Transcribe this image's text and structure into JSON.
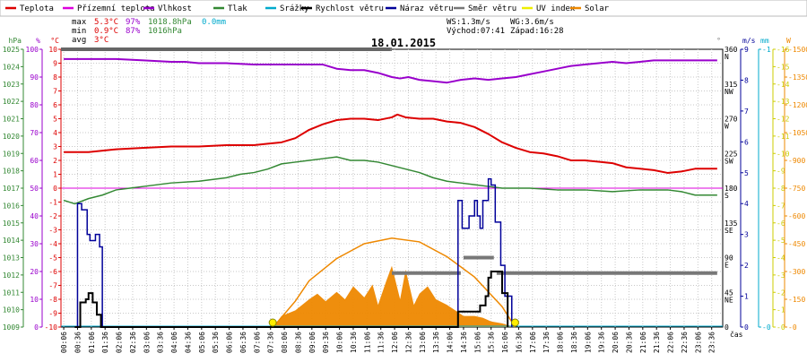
{
  "chart_data": {
    "type": "line",
    "title": "18.01.2015",
    "xlabel": "čas",
    "legend": [
      {
        "name": "Teplota",
        "color": "#dd0000"
      },
      {
        "name": "Přízemní teplota",
        "color": "#dd00dd"
      },
      {
        "name": "Vlhkost",
        "color": "#9900cc"
      },
      {
        "name": "Tlak",
        "color": "#338833"
      },
      {
        "name": "Srážky",
        "color": "#00aacc"
      },
      {
        "name": "Rychlost větru",
        "color": "#000000"
      },
      {
        "name": "Náraz větru",
        "color": "#000099"
      },
      {
        "name": "Směr větru",
        "color": "#777777"
      },
      {
        "name": "UV index",
        "color": "#eeee00"
      },
      {
        "name": "Solar",
        "color": "#ee8800"
      }
    ],
    "stats": {
      "max": {
        "label": "max",
        "temp": "5.3°C",
        "hum": "97%",
        "press": "1018.8hPa",
        "rain": "0.0mm"
      },
      "min": {
        "label": "min",
        "temp": "0.9°C",
        "hum": "87%",
        "press": "1016hPa"
      },
      "avg": {
        "label": "avg",
        "temp": "3°C"
      }
    },
    "info": {
      "ws": "WS:1.3m/s",
      "wg": "WG:3.6m/s",
      "sunrise": "Východ:07:41",
      "sunset": "Západ:16:28"
    },
    "axes": {
      "pressure": {
        "unit": "hPa",
        "min": 1009,
        "max": 1025,
        "ticks": [
          "1025",
          "1024",
          "1023",
          "1022",
          "1021",
          "1020",
          "1019",
          "1018",
          "1017",
          "1016",
          "1015",
          "1014",
          "1013",
          "1012",
          "1011",
          "1010",
          "1009"
        ]
      },
      "humidity": {
        "unit": "%",
        "min": 0,
        "max": 100,
        "ticks": [
          "100",
          "90",
          "80",
          "70",
          "60",
          "50",
          "40",
          "30",
          "20",
          "10",
          "0"
        ]
      },
      "temperature": {
        "unit": "°C",
        "min": -10,
        "max": 10,
        "ticks": [
          "10",
          "9",
          "8",
          "7",
          "6",
          "5",
          "4",
          "3",
          "2",
          "1",
          "0",
          "-1",
          "-2",
          "-3",
          "-4",
          "-5",
          "-6",
          "-7",
          "-8",
          "-9",
          "-10"
        ]
      },
      "direction": {
        "unit": "°",
        "ticks": [
          {
            "v": 360,
            "l": "360",
            "d": "N"
          },
          {
            "v": 315,
            "l": "315",
            "d": "NW"
          },
          {
            "v": 270,
            "l": "270",
            "d": "W"
          },
          {
            "v": 225,
            "l": "225",
            "d": "SW"
          },
          {
            "v": 180,
            "l": "180",
            "d": "S"
          },
          {
            "v": 135,
            "l": "135",
            "d": "SE"
          },
          {
            "v": 90,
            "l": "90",
            "d": "E"
          },
          {
            "v": 45,
            "l": "45",
            "d": "NE"
          },
          {
            "v": 0,
            "l": "0",
            "d": ""
          }
        ]
      },
      "wind": {
        "unit": "m/s",
        "min": 0,
        "max": 9,
        "ticks": [
          "9",
          "8",
          "7",
          "6",
          "5",
          "4",
          "3",
          "2",
          "1",
          "0"
        ]
      },
      "rain": {
        "unit": "mm",
        "min": 0,
        "max": 1,
        "ticks": [
          "1",
          "0"
        ]
      },
      "uv": {
        "min": 0,
        "max": 16,
        "ticks": [
          "16",
          "15",
          "14",
          "13",
          "12",
          "11",
          "10",
          "9",
          "8",
          "7",
          "6",
          "5",
          "4",
          "3",
          "2",
          "1",
          "0"
        ]
      },
      "solar": {
        "unit": "W",
        "min": 0,
        "max": 1500,
        "ticks": [
          "1500",
          "1350",
          "1200",
          "1050",
          "900",
          "750",
          "600",
          "450",
          "300",
          "150",
          "0"
        ]
      },
      "time": [
        "00:06",
        "00:36",
        "01:06",
        "01:36",
        "02:06",
        "02:36",
        "03:06",
        "03:36",
        "04:06",
        "04:36",
        "05:06",
        "05:36",
        "06:06",
        "06:36",
        "07:06",
        "07:36",
        "08:06",
        "08:36",
        "09:06",
        "09:36",
        "10:06",
        "10:36",
        "11:06",
        "11:36",
        "12:06",
        "12:36",
        "13:06",
        "13:36",
        "14:06",
        "14:36",
        "15:06",
        "15:36",
        "16:06",
        "16:36",
        "17:06",
        "17:36",
        "18:06",
        "18:36",
        "19:06",
        "19:36",
        "20:06",
        "20:36",
        "21:06",
        "21:36",
        "22:06",
        "22:36",
        "23:06",
        "23:36"
      ]
    },
    "series": {
      "humidity": {
        "name": "Vlhkost",
        "t": [
          0.1,
          0.5,
          1.0,
          1.6,
          2.0,
          3.0,
          4.0,
          4.5,
          5.0,
          6.0,
          7.0,
          8.0,
          8.5,
          9.0,
          9.5,
          10.0,
          10.5,
          11.0,
          11.5,
          12.0,
          12.3,
          12.6,
          13.0,
          13.5,
          14.0,
          14.5,
          15.0,
          15.5,
          16.0,
          16.5,
          17.0,
          17.5,
          18.0,
          18.5,
          19.0,
          19.5,
          20.0,
          20.5,
          21.0,
          21.5,
          22.0,
          22.5,
          23.0,
          23.8
        ],
        "v": [
          96.5,
          96.5,
          96.5,
          96.5,
          96.5,
          96,
          95.5,
          95.5,
          95,
          95,
          94.5,
          94.5,
          94.5,
          94.5,
          94.5,
          93,
          92.5,
          92.5,
          91.5,
          90,
          89.5,
          90,
          89,
          88.5,
          88,
          89,
          89.5,
          89,
          89.5,
          90,
          91,
          92,
          93,
          94,
          94.5,
          95,
          95.5,
          95,
          95.5,
          96,
          96,
          96,
          96,
          96
        ]
      },
      "temperature": {
        "name": "Teplota",
        "t": [
          0.1,
          1.0,
          2.0,
          3.0,
          4.0,
          5.0,
          6.0,
          7.0,
          7.5,
          8.0,
          8.5,
          9.0,
          9.5,
          10.0,
          10.5,
          11.0,
          11.5,
          12.0,
          12.2,
          12.5,
          13.0,
          13.5,
          14.0,
          14.5,
          15.0,
          15.5,
          16.0,
          16.5,
          17.0,
          17.5,
          18.0,
          18.5,
          19.0,
          19.5,
          20.0,
          20.5,
          21.0,
          21.5,
          22.0,
          22.5,
          23.0,
          23.8
        ],
        "v": [
          2.6,
          2.6,
          2.8,
          2.9,
          3.0,
          3.0,
          3.1,
          3.1,
          3.2,
          3.3,
          3.6,
          4.2,
          4.6,
          4.9,
          5.0,
          5.0,
          4.9,
          5.1,
          5.3,
          5.1,
          5.0,
          5.0,
          4.8,
          4.7,
          4.4,
          3.9,
          3.3,
          2.9,
          2.6,
          2.5,
          2.3,
          2.0,
          2.0,
          1.9,
          1.8,
          1.5,
          1.4,
          1.3,
          1.1,
          1.2,
          1.4,
          1.4
        ]
      },
      "pressure": {
        "name": "Tlak",
        "t": [
          0.1,
          0.5,
          1.0,
          1.5,
          2.0,
          2.5,
          3.0,
          4.0,
          5.0,
          6.0,
          6.5,
          7.0,
          7.5,
          8.0,
          8.5,
          9.0,
          9.5,
          10.0,
          10.5,
          11.0,
          11.5,
          12.0,
          12.5,
          13.0,
          13.5,
          14.0,
          14.5,
          15.0,
          15.5,
          16.0,
          17.0,
          18.0,
          19.0,
          20.0,
          21.0,
          21.5,
          22.0,
          22.5,
          23.0,
          23.8
        ],
        "v": [
          1016.3,
          1016.1,
          1016.4,
          1016.6,
          1016.9,
          1017.0,
          1017.1,
          1017.3,
          1017.4,
          1017.6,
          1017.8,
          1017.9,
          1018.1,
          1018.4,
          1018.5,
          1018.6,
          1018.7,
          1018.8,
          1018.6,
          1018.6,
          1018.5,
          1018.3,
          1018.1,
          1017.9,
          1017.6,
          1017.4,
          1017.3,
          1017.2,
          1017.1,
          1017.0,
          1017.0,
          1016.9,
          1016.9,
          1016.8,
          1016.9,
          1016.9,
          1016.9,
          1016.8,
          1016.6,
          1016.6
        ]
      },
      "wind_gust": {
        "name": "Náraz větru",
        "t": [
          0.5,
          0.6,
          0.75,
          0.95,
          1.05,
          1.25,
          1.4,
          1.5,
          14.3,
          14.4,
          14.55,
          14.8,
          15.0,
          15.1,
          15.2,
          15.3,
          15.5,
          15.6,
          15.75,
          15.95,
          16.1,
          16.35
        ],
        "v": [
          0,
          4.0,
          3.8,
          3.0,
          2.8,
          3.0,
          2.6,
          0,
          0,
          4.1,
          3.2,
          3.6,
          4.1,
          3.6,
          3.2,
          4.1,
          4.8,
          4.6,
          3.4,
          2.0,
          1.0,
          0
        ]
      },
      "wind_speed": {
        "name": "Rychlost větru",
        "t": [
          0.5,
          0.7,
          0.9,
          1.0,
          1.15,
          1.3,
          1.45,
          14.2,
          14.4,
          15.0,
          15.2,
          15.4,
          15.5,
          15.6,
          15.8,
          16.0,
          16.2
        ],
        "v": [
          0,
          0.8,
          0.9,
          1.1,
          0.8,
          0.4,
          0,
          0,
          0.5,
          0.5,
          0.7,
          1.0,
          1.6,
          1.8,
          1.8,
          1.1,
          0
        ]
      },
      "wind_dir": {
        "name": "Směr větru",
        "segments": [
          {
            "t0": 0.1,
            "t1": 12.0,
            "v": 360
          },
          {
            "t0": 12.0,
            "t1": 14.5,
            "v": 70
          },
          {
            "t0": 14.6,
            "t1": 15.7,
            "v": 90
          },
          {
            "t0": 15.8,
            "t1": 23.8,
            "v": 70
          }
        ]
      },
      "solar": {
        "name": "Solar",
        "t": [
          7.7,
          8.0,
          8.5,
          9.0,
          9.3,
          9.6,
          10.0,
          10.3,
          10.6,
          11.0,
          11.3,
          11.5,
          11.8,
          12.0,
          12.3,
          12.5,
          12.8,
          13.0,
          13.3,
          13.6,
          14.0,
          14.3,
          14.6,
          15.0,
          15.3,
          15.6,
          16.0,
          16.2,
          16.47
        ],
        "v": [
          0,
          60,
          90,
          150,
          180,
          140,
          190,
          150,
          220,
          160,
          230,
          120,
          250,
          330,
          150,
          310,
          120,
          180,
          220,
          150,
          120,
          90,
          60,
          60,
          50,
          30,
          20,
          10,
          0
        ]
      },
      "solar_max": {
        "name": "Solar max",
        "t": [
          7.7,
          8.5,
          9.0,
          10.0,
          11.0,
          12.0,
          13.0,
          14.0,
          15.0,
          15.5,
          16.0,
          16.47
        ],
        "v": [
          0,
          140,
          250,
          370,
          450,
          480,
          460,
          380,
          270,
          190,
          110,
          0
        ]
      },
      "sun_markers": {
        "sunrise": 7.68,
        "sunset": 16.47
      },
      "rain": {
        "name": "Srážky",
        "v": 0
      }
    }
  }
}
